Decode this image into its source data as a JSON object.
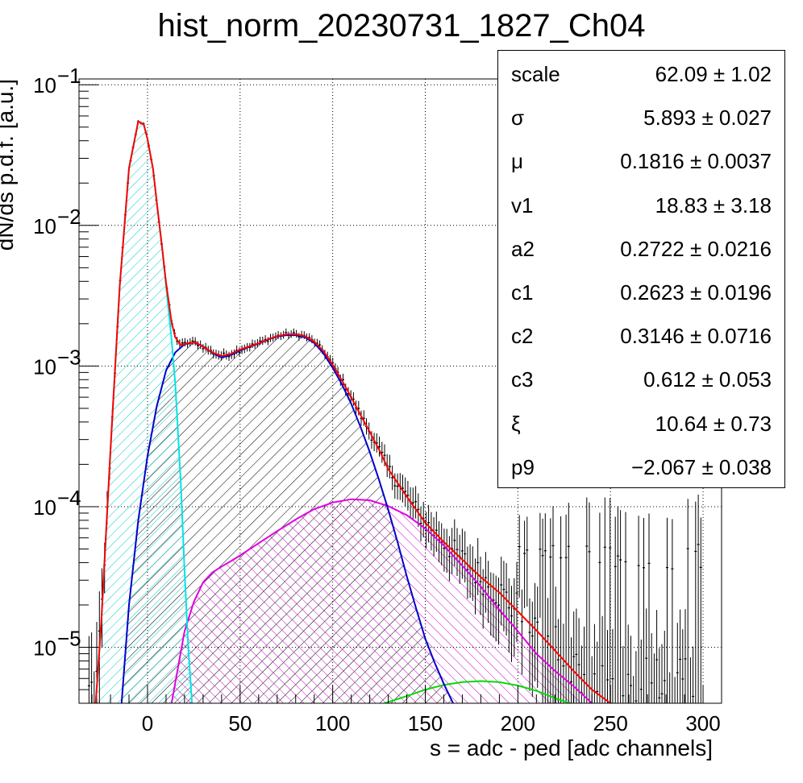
{
  "title": "hist_norm_20230731_1827_Ch04",
  "xlabel": "s = adc - ped [adc channels]",
  "ylabel": "dN/ds p.d.f. [a.u.]",
  "stats": [
    {
      "name": "scale",
      "value": "62.09 ± 1.02"
    },
    {
      "name": "σ",
      "value": "5.893 ± 0.027"
    },
    {
      "name": "μ",
      "value": "0.1816 ± 0.0037"
    },
    {
      "name": "v1",
      "value": "18.83 ± 3.18"
    },
    {
      "name": "a2",
      "value": "0.2722 ± 0.0216"
    },
    {
      "name": "c1",
      "value": "0.2623 ± 0.0196"
    },
    {
      "name": "c2",
      "value": "0.3146 ± 0.0716"
    },
    {
      "name": "c3",
      "value": "0.612 ± 0.053"
    },
    {
      "name": "ξ",
      "value": "10.64 ± 0.73"
    },
    {
      "name": "p9",
      "value": "−2.067 ± 0.038"
    }
  ],
  "chart_data": {
    "type": "line",
    "xlim": [
      -37,
      310
    ],
    "ylim": [
      4e-06,
      0.11
    ],
    "log_y": true,
    "grid": true,
    "x_ticks": [
      0,
      50,
      100,
      150,
      200,
      250,
      300
    ],
    "x_tick_labels": [
      "0",
      "50",
      "100",
      "150",
      "200",
      "250",
      "300"
    ],
    "y_ticks": [
      1e-05,
      0.0001,
      0.001,
      0.01,
      0.1
    ],
    "y_tick_labels": [
      {
        "base": "10",
        "exp": "−5"
      },
      {
        "base": "10",
        "exp": "−4"
      },
      {
        "base": "10",
        "exp": "−3"
      },
      {
        "base": "10",
        "exp": "−2"
      },
      {
        "base": "10",
        "exp": "−1"
      }
    ],
    "colors": {
      "total": "#ff0000",
      "pedestal": "#00e5e5",
      "pe1": "#0000cc",
      "pe2": "#e000e0",
      "pe3": "#00dd00",
      "data": "#000000"
    },
    "series": [
      {
        "key": "total",
        "x": [
          -28,
          -25,
          -20,
          -15,
          -10,
          -5,
          -2,
          0,
          3,
          5,
          8,
          10,
          13,
          15,
          18,
          22,
          26,
          30,
          35,
          40,
          45,
          50,
          55,
          60,
          65,
          70,
          75,
          80,
          85,
          90,
          95,
          100,
          105,
          110,
          115,
          120,
          125,
          130,
          140,
          150,
          160,
          170,
          180,
          190,
          200,
          210,
          220,
          230,
          240,
          250,
          260
        ],
        "y": [
          4e-06,
          1.5e-05,
          0.00025,
          0.0037,
          0.0255,
          0.055,
          0.052,
          0.041,
          0.025,
          0.0145,
          0.0067,
          0.0039,
          0.00205,
          0.0016,
          0.00141,
          0.00146,
          0.00147,
          0.00137,
          0.00125,
          0.00118,
          0.00122,
          0.00131,
          0.00138,
          0.00145,
          0.00155,
          0.00163,
          0.00168,
          0.00168,
          0.00163,
          0.00149,
          0.00128,
          0.00102,
          0.00079,
          0.0006,
          0.00045,
          0.00034,
          0.000255,
          0.000185,
          0.000118,
          7.7e-05,
          5.6e-05,
          4.2e-05,
          3.15e-05,
          2.45e-05,
          1.8e-05,
          1.32e-05,
          9.5e-06,
          6.8e-06,
          5e-06,
          4e-06,
          3.8e-06
        ]
      },
      {
        "key": "pedestal",
        "x": [
          -28,
          -25,
          -20,
          -15,
          -10,
          -5,
          -2,
          0,
          3,
          5,
          8,
          10,
          13,
          15,
          18,
          20,
          22,
          24
        ],
        "y": [
          4e-06,
          1.5e-05,
          0.00025,
          0.0037,
          0.0255,
          0.055,
          0.052,
          0.041,
          0.025,
          0.0145,
          0.0067,
          0.0037,
          0.00155,
          0.00075,
          0.000145,
          3.5e-05,
          1e-05,
          4e-06
        ]
      },
      {
        "key": "pe1",
        "x": [
          -14,
          -10,
          -5,
          0,
          5,
          10,
          15,
          20,
          25,
          30,
          35,
          40,
          45,
          50,
          55,
          60,
          65,
          70,
          75,
          80,
          85,
          90,
          95,
          100,
          105,
          110,
          115,
          120,
          125,
          130,
          135,
          140,
          145,
          150,
          155,
          160,
          165
        ],
        "y": [
          4e-06,
          2e-05,
          8e-05,
          0.00023,
          0.00052,
          0.00093,
          0.00125,
          0.00143,
          0.00147,
          0.00138,
          0.00124,
          0.00115,
          0.0012,
          0.00129,
          0.00137,
          0.00144,
          0.00154,
          0.00162,
          0.00166,
          0.00166,
          0.0016,
          0.00146,
          0.00123,
          0.00097,
          0.00074,
          0.00054,
          0.00037,
          0.000245,
          0.000155,
          9.5e-05,
          5.6e-05,
          3.2e-05,
          1.9e-05,
          1.15e-05,
          7.8e-06,
          5.5e-06,
          4e-06
        ]
      },
      {
        "key": "pe2",
        "x": [
          13,
          20,
          25,
          30,
          35,
          40,
          45,
          50,
          60,
          70,
          80,
          90,
          100,
          110,
          120,
          130,
          140,
          150,
          160,
          170,
          180,
          190,
          200,
          210,
          220,
          230,
          240
        ],
        "y": [
          4e-06,
          1.3e-05,
          2.1e-05,
          2.9e-05,
          3.4e-05,
          3.75e-05,
          4.1e-05,
          4.5e-05,
          5.5e-05,
          6.7e-05,
          8.1e-05,
          9.6e-05,
          0.000107,
          0.000113,
          0.000111,
          0.000101,
          8.7e-05,
          7e-05,
          5.3e-05,
          3.8e-05,
          2.7e-05,
          1.85e-05,
          1.3e-05,
          9e-06,
          6.8e-06,
          5.3e-06,
          4e-06
        ]
      },
      {
        "key": "pe3",
        "x": [
          128,
          140,
          150,
          160,
          170,
          180,
          190,
          200,
          210,
          220,
          228
        ],
        "y": [
          4e-06,
          4.5e-06,
          5e-06,
          5.4e-06,
          5.65e-06,
          5.75e-06,
          5.65e-06,
          5.35e-06,
          4.9e-06,
          4.35e-06,
          4e-06
        ]
      }
    ]
  }
}
